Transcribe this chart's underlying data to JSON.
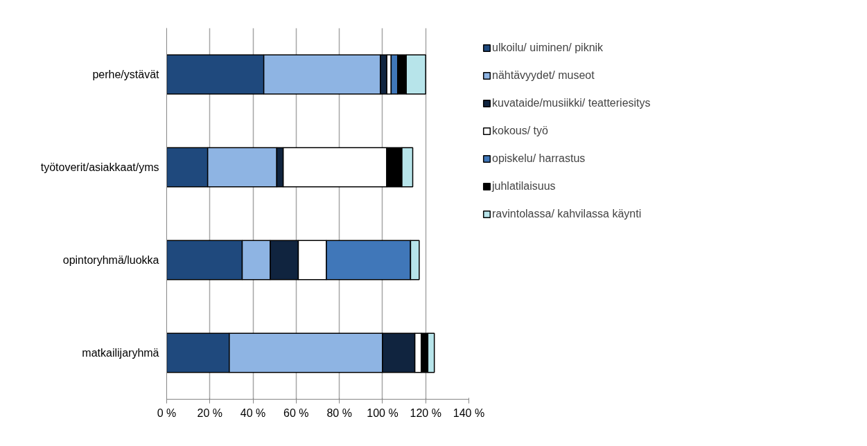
{
  "chart_data": {
    "type": "bar",
    "orientation": "horizontal",
    "stacked": true,
    "categories": [
      "perhe/ystävät",
      "työtoverit/asiakkaat/yms",
      "opintoryhmä/luokka",
      "matkailijaryhmä"
    ],
    "series": [
      {
        "name": "ulkoilu/ uiminen/ piknik",
        "color": "#1f497d",
        "values": [
          45,
          19,
          35,
          29
        ]
      },
      {
        "name": "nähtävyydet/ museot",
        "color": "#8eb4e3",
        "values": [
          54,
          32,
          13,
          71
        ]
      },
      {
        "name": "kuvataide/musiikki/ teatteriesitys",
        "color": "#10243f",
        "values": [
          3,
          3,
          13,
          15
        ]
      },
      {
        "name": "kokous/ työ",
        "color": "#ffffff",
        "values": [
          2,
          48,
          13,
          3
        ]
      },
      {
        "name": "opiskelu/ harrastus",
        "color": "#4077b9",
        "values": [
          3,
          0,
          39,
          0
        ]
      },
      {
        "name": "juhlatilaisuus",
        "color": "#000000",
        "values": [
          4,
          7,
          0,
          3
        ]
      },
      {
        "name": "ravintolassa/ kahvilassa käynti",
        "color": "#b7e4ea",
        "values": [
          9,
          5,
          4,
          3
        ]
      }
    ],
    "xlim": [
      0,
      140
    ],
    "xticks": [
      {
        "value": 0,
        "label": "0 %"
      },
      {
        "value": 20,
        "label": "20 %"
      },
      {
        "value": 40,
        "label": "40 %"
      },
      {
        "value": 60,
        "label": "60 %"
      },
      {
        "value": 80,
        "label": "80 %"
      },
      {
        "value": 100,
        "label": "100 %"
      },
      {
        "value": 120,
        "label": "120 %"
      },
      {
        "value": 140,
        "label": "140 %"
      }
    ],
    "grid": "x",
    "legend": "right"
  }
}
